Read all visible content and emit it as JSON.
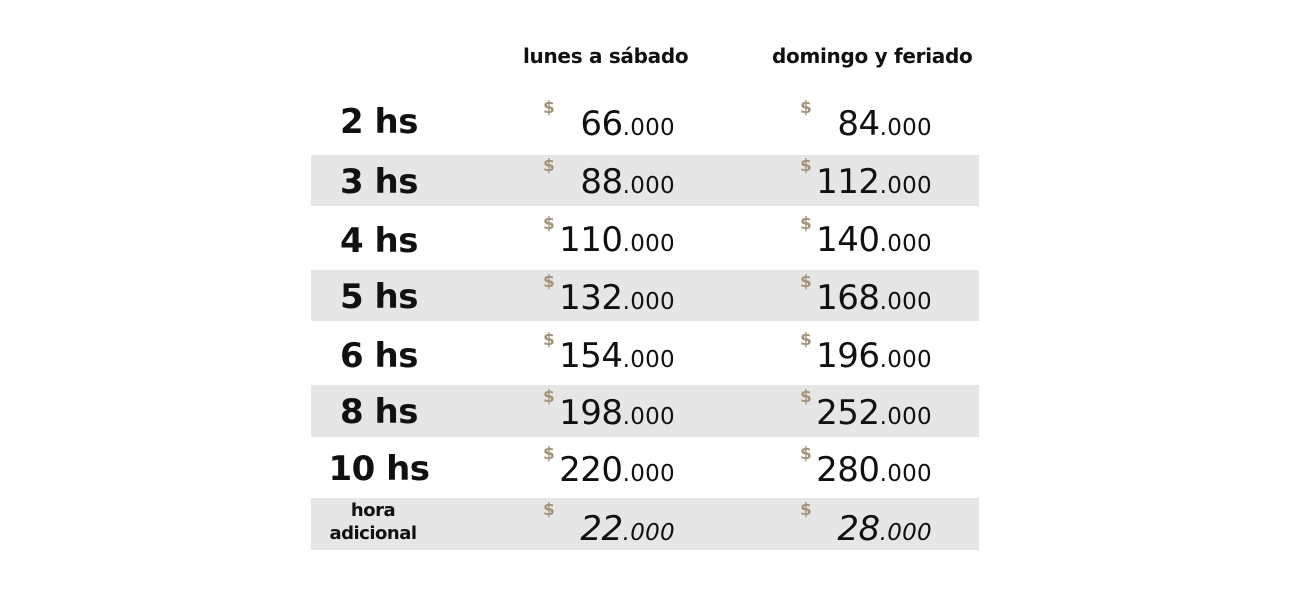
{
  "headers": {
    "weekday": "lunes a sábado",
    "weekend": "domingo y feriado"
  },
  "currency_symbol": "$",
  "rows": [
    {
      "hours": "2 hs",
      "weekday": {
        "major": "66",
        "minor": ".000"
      },
      "weekend": {
        "major": "84",
        "minor": ".000"
      }
    },
    {
      "hours": "3 hs",
      "weekday": {
        "major": "88",
        "minor": ".000"
      },
      "weekend": {
        "major": "112",
        "minor": ".000"
      }
    },
    {
      "hours": "4 hs",
      "weekday": {
        "major": "110",
        "minor": ".000"
      },
      "weekend": {
        "major": "140",
        "minor": ".000"
      }
    },
    {
      "hours": "5 hs",
      "weekday": {
        "major": "132",
        "minor": ".000"
      },
      "weekend": {
        "major": "168",
        "minor": ".000"
      }
    },
    {
      "hours": "6 hs",
      "weekday": {
        "major": "154",
        "minor": ".000"
      },
      "weekend": {
        "major": "196",
        "minor": ".000"
      }
    },
    {
      "hours": "8 hs",
      "weekday": {
        "major": "198",
        "minor": ".000"
      },
      "weekend": {
        "major": "252",
        "minor": ".000"
      }
    },
    {
      "hours": "10 hs",
      "weekday": {
        "major": "220",
        "minor": ".000"
      },
      "weekend": {
        "major": "280",
        "minor": ".000"
      }
    },
    {
      "hours": "hora adicional",
      "weekday": {
        "major": "22",
        "minor": ".000"
      },
      "weekend": {
        "major": "28",
        "minor": ".000"
      }
    }
  ],
  "colors": {
    "currency": "#a4947c",
    "shaded_row": "#e6e6e6",
    "text": "#111111"
  }
}
